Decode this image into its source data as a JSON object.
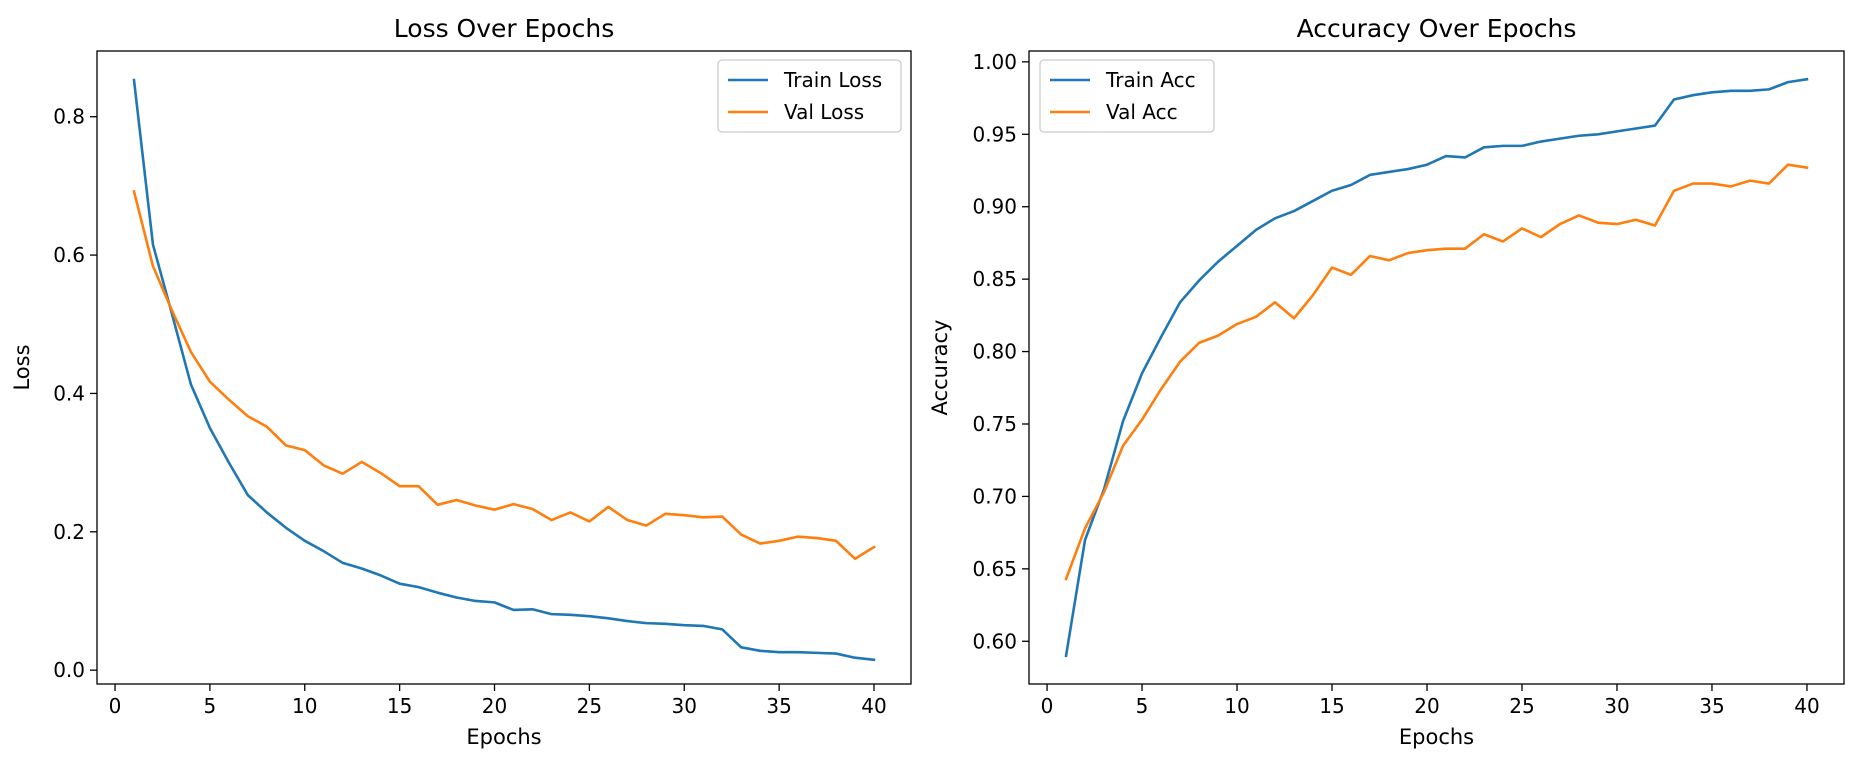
{
  "chart_data": [
    {
      "type": "line",
      "title": "Loss Over Epochs",
      "xlabel": "Epochs",
      "ylabel": "Loss",
      "xlim": [
        -0.95,
        41.95
      ],
      "ylim": [
        -0.02,
        0.895
      ],
      "xticks": [
        0,
        5,
        10,
        15,
        20,
        25,
        30,
        35,
        40
      ],
      "xtick_labels": [
        "0",
        "5",
        "10",
        "15",
        "20",
        "25",
        "30",
        "35",
        "40"
      ],
      "yticks": [
        0.0,
        0.2,
        0.4,
        0.6,
        0.8
      ],
      "ytick_labels": [
        "0.0",
        "0.2",
        "0.4",
        "0.6",
        "0.8"
      ],
      "grid": false,
      "legend_position": "top-right",
      "x": [
        1,
        2,
        3,
        4,
        5,
        6,
        7,
        8,
        9,
        10,
        11,
        12,
        13,
        14,
        15,
        16,
        17,
        18,
        19,
        20,
        21,
        22,
        23,
        24,
        25,
        26,
        27,
        28,
        29,
        30,
        31,
        32,
        33,
        34,
        35,
        36,
        37,
        38,
        39,
        40
      ],
      "series": [
        {
          "name": "Train Loss",
          "color": "#1f77b4",
          "values": [
            0.853,
            0.615,
            0.515,
            0.413,
            0.35,
            0.3,
            0.253,
            0.228,
            0.206,
            0.187,
            0.172,
            0.155,
            0.147,
            0.137,
            0.125,
            0.12,
            0.112,
            0.105,
            0.1,
            0.098,
            0.087,
            0.088,
            0.081,
            0.08,
            0.078,
            0.075,
            0.071,
            0.068,
            0.067,
            0.065,
            0.064,
            0.059,
            0.033,
            0.028,
            0.026,
            0.026,
            0.025,
            0.024,
            0.018,
            0.015
          ]
        },
        {
          "name": "Val Loss",
          "color": "#ff7f0e",
          "values": [
            0.692,
            0.584,
            0.52,
            0.46,
            0.417,
            0.391,
            0.367,
            0.352,
            0.325,
            0.318,
            0.296,
            0.284,
            0.301,
            0.285,
            0.266,
            0.266,
            0.239,
            0.246,
            0.238,
            0.232,
            0.24,
            0.233,
            0.217,
            0.228,
            0.215,
            0.236,
            0.217,
            0.209,
            0.226,
            0.224,
            0.221,
            0.222,
            0.196,
            0.183,
            0.187,
            0.193,
            0.191,
            0.187,
            0.161,
            0.178
          ]
        }
      ]
    },
    {
      "type": "line",
      "title": "Accuracy Over Epochs",
      "xlabel": "Epochs",
      "ylabel": "Accuracy",
      "xlim": [
        -0.95,
        41.95
      ],
      "ylim": [
        0.5705,
        1.0075
      ],
      "xticks": [
        0,
        5,
        10,
        15,
        20,
        25,
        30,
        35,
        40
      ],
      "xtick_labels": [
        "0",
        "5",
        "10",
        "15",
        "20",
        "25",
        "30",
        "35",
        "40"
      ],
      "yticks": [
        0.6,
        0.65,
        0.7,
        0.75,
        0.8,
        0.85,
        0.9,
        0.95,
        1.0
      ],
      "ytick_labels": [
        "0.60",
        "0.65",
        "0.70",
        "0.75",
        "0.80",
        "0.85",
        "0.90",
        "0.95",
        "1.00"
      ],
      "grid": false,
      "legend_position": "top-left",
      "x": [
        1,
        2,
        3,
        4,
        5,
        6,
        7,
        8,
        9,
        10,
        11,
        12,
        13,
        14,
        15,
        16,
        17,
        18,
        19,
        20,
        21,
        22,
        23,
        24,
        25,
        26,
        27,
        28,
        29,
        30,
        31,
        32,
        33,
        34,
        35,
        36,
        37,
        38,
        39,
        40
      ],
      "series": [
        {
          "name": "Train Acc",
          "color": "#1f77b4",
          "values": [
            0.59,
            0.67,
            0.705,
            0.752,
            0.785,
            0.81,
            0.834,
            0.849,
            0.862,
            0.873,
            0.884,
            0.892,
            0.897,
            0.904,
            0.911,
            0.915,
            0.922,
            0.924,
            0.926,
            0.929,
            0.935,
            0.934,
            0.941,
            0.942,
            0.942,
            0.945,
            0.947,
            0.949,
            0.95,
            0.952,
            0.954,
            0.956,
            0.974,
            0.977,
            0.979,
            0.98,
            0.98,
            0.981,
            0.986,
            0.988
          ]
        },
        {
          "name": "Val Acc",
          "color": "#ff7f0e",
          "values": [
            0.643,
            0.678,
            0.703,
            0.735,
            0.753,
            0.774,
            0.793,
            0.806,
            0.811,
            0.819,
            0.824,
            0.834,
            0.823,
            0.839,
            0.858,
            0.853,
            0.866,
            0.863,
            0.868,
            0.87,
            0.871,
            0.871,
            0.881,
            0.876,
            0.885,
            0.879,
            0.888,
            0.894,
            0.889,
            0.888,
            0.891,
            0.887,
            0.911,
            0.916,
            0.916,
            0.914,
            0.918,
            0.916,
            0.929,
            0.927
          ]
        }
      ]
    }
  ]
}
